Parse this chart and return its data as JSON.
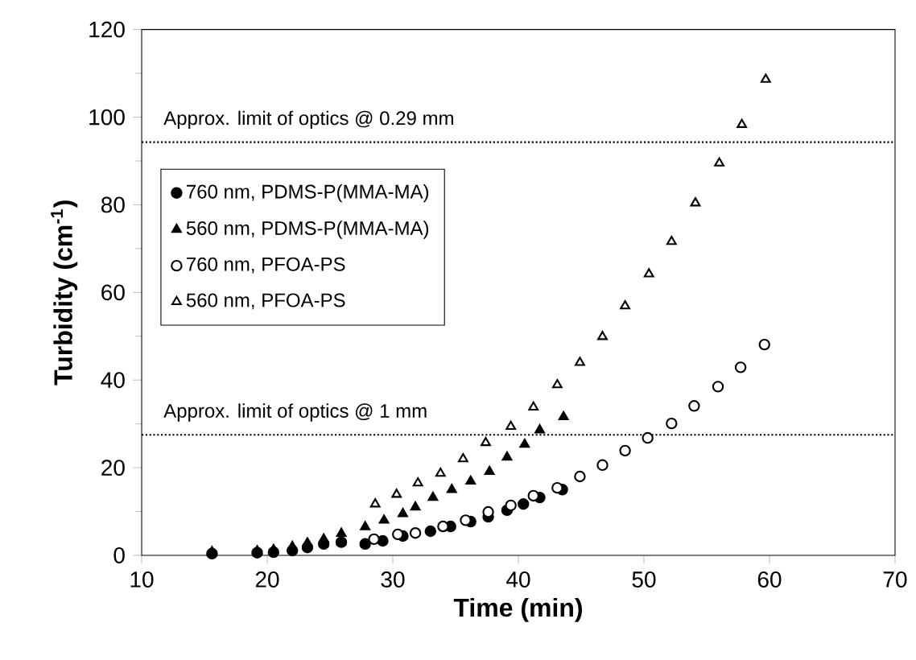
{
  "chart_data": {
    "type": "scatter",
    "xlabel": "Time (min)",
    "ylabel": "Turbidity (cm$^{-1}$)",
    "xlim": [
      10,
      70
    ],
    "ylim": [
      0,
      120
    ],
    "xticks": [
      10,
      20,
      30,
      40,
      50,
      60,
      70
    ],
    "yticks": [
      0,
      20,
      40,
      60,
      80,
      100,
      120
    ],
    "grid": false,
    "legend": "top left",
    "ref_lines": [
      {
        "axis": "y",
        "value": 94.3,
        "label": "Approx. limit of optics @ 0.29 mm",
        "color": "#000000",
        "line_style": "dotted"
      },
      {
        "axis": "y",
        "value": 27.5,
        "label": "Approx. limit of optics @ 1 mm",
        "color": "#000000",
        "line_style": "dotted"
      }
    ],
    "series": [
      {
        "name": "760 nm, PDMS-P(MMA-MA)",
        "color": "#000000",
        "marker": "circle",
        "x": [
          15.6,
          19.2,
          20.5,
          22,
          23.2,
          24.5,
          25.9,
          27.8,
          29.2,
          30.8,
          33,
          34.6,
          36.2,
          37.6,
          39.1,
          40.4,
          41.7,
          43.5
        ],
        "values": [
          0.4,
          0.6,
          0.7,
          1.1,
          1.8,
          2.6,
          3,
          2.6,
          3.3,
          4.4,
          5.5,
          6.6,
          7.7,
          8.8,
          10.3,
          11.7,
          13.2,
          15
        ]
      },
      {
        "name": "560 nm, PDMS-P(MMA-MA)",
        "color": "#000000",
        "marker": "triangle",
        "x": [
          15.6,
          19.2,
          20.5,
          22,
          23.2,
          24.5,
          25.9,
          27.8,
          29.3,
          30.8,
          31.8,
          33.2,
          34.7,
          36.2,
          37.7,
          39.1,
          40.5,
          41.7,
          43.6
        ],
        "values": [
          0.8,
          1,
          1.3,
          2,
          2.8,
          3.7,
          5,
          6.5,
          8,
          9.5,
          11,
          13.2,
          15,
          16.9,
          19.1,
          22.4,
          25.3,
          28.6,
          31.6
        ]
      },
      {
        "name": "760 nm, PFOA-PS",
        "color": "#ffffff",
        "marker": "circle",
        "x": [
          28.5,
          30.4,
          31.8,
          34,
          35.8,
          37.6,
          39.4,
          41.2,
          43.1,
          44.9,
          46.7,
          48.5,
          50.3,
          52.2,
          54,
          55.9,
          57.7,
          59.6
        ],
        "values": [
          3.7,
          4.8,
          5.1,
          6.6,
          8,
          9.9,
          11.4,
          13.6,
          15.4,
          18,
          20.6,
          23.9,
          26.8,
          30.1,
          34.1,
          38.5,
          42.9,
          48.1
        ]
      },
      {
        "name": "560 nm, PFOA-PS",
        "color": "#ffffff",
        "marker": "triangle",
        "x": [
          28.6,
          30.3,
          32,
          33.8,
          35.6,
          37.4,
          39.4,
          41.2,
          43.1,
          44.9,
          46.7,
          48.5,
          50.4,
          52.2,
          54.1,
          56,
          57.8,
          59.7
        ],
        "values": [
          11.7,
          13.9,
          16.5,
          18.7,
          22,
          25.7,
          29.4,
          33.8,
          38.9,
          44,
          49.9,
          56.9,
          64.2,
          71.6,
          80.4,
          89.5,
          98.3,
          108.6
        ]
      }
    ]
  }
}
